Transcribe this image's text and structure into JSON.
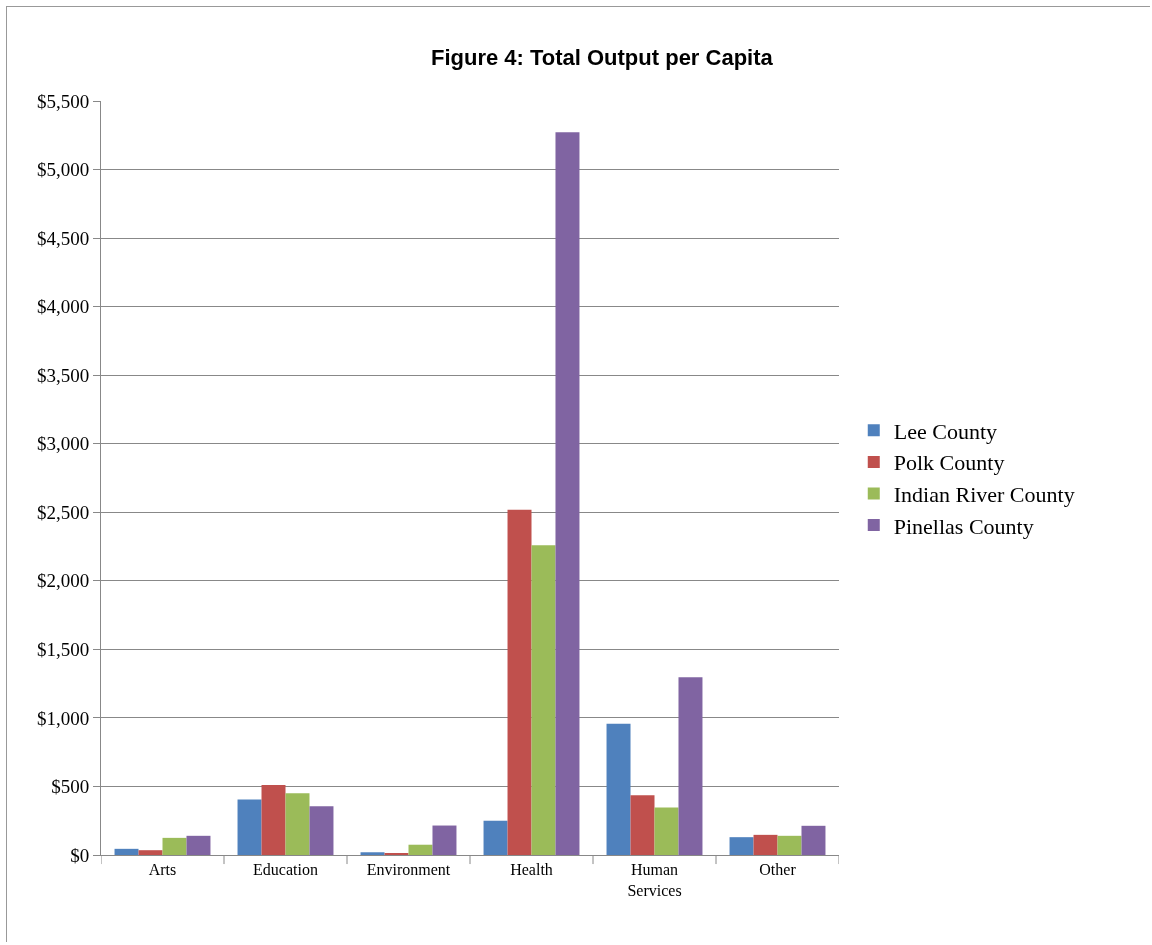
{
  "chart_data": {
    "type": "bar",
    "title": "Figure 4: Total Output per Capita",
    "categories": [
      "Arts",
      "Education",
      "Environment",
      "Health",
      "Human Services",
      "Other"
    ],
    "series": [
      {
        "name": "Lee County",
        "color": "#4f81bd",
        "values": [
          45,
          405,
          20,
          250,
          957,
          130
        ]
      },
      {
        "name": "Polk County",
        "color": "#c0504d",
        "values": [
          35,
          510,
          10,
          2518,
          435,
          147
        ]
      },
      {
        "name": "Indian River County",
        "color": "#9bbb59",
        "values": [
          125,
          450,
          75,
          2260,
          346,
          140
        ]
      },
      {
        "name": "Pinellas County",
        "color": "#8064a2",
        "values": [
          140,
          355,
          215,
          5272,
          1296,
          213
        ]
      }
    ],
    "ylim": [
      0,
      5500
    ],
    "yticks": [
      {
        "value": 0,
        "label": "$0"
      },
      {
        "value": 500,
        "label": "$500"
      },
      {
        "value": 1000,
        "label": "$1,000"
      },
      {
        "value": 1500,
        "label": "$1,500"
      },
      {
        "value": 2000,
        "label": "$2,000"
      },
      {
        "value": 2500,
        "label": "$2,500"
      },
      {
        "value": 3000,
        "label": "$3,000"
      },
      {
        "value": 3500,
        "label": "$3,500"
      },
      {
        "value": 4000,
        "label": "$4,000"
      },
      {
        "value": 4500,
        "label": "$4,500"
      },
      {
        "value": 5000,
        "label": "$5,000"
      },
      {
        "value": 5500,
        "label": "$5,500"
      }
    ],
    "grid": "y",
    "legend": "right"
  }
}
